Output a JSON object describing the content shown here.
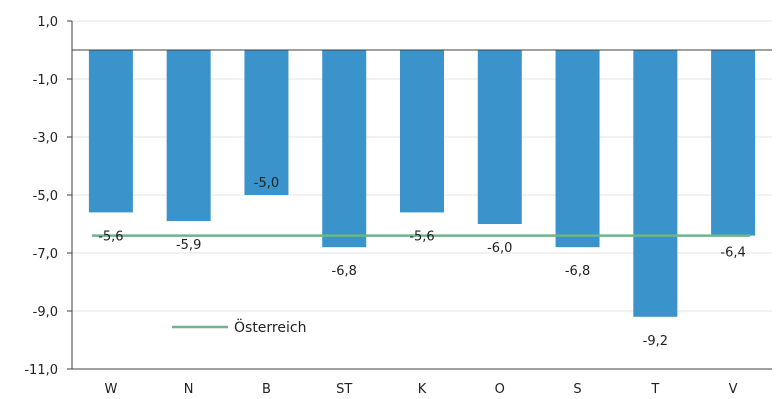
{
  "chart_data": {
    "type": "bar",
    "categories": [
      "W",
      "N",
      "B",
      "ST",
      "K",
      "O",
      "S",
      "T",
      "V"
    ],
    "series": [
      {
        "values": [
          -5.6,
          -5.9,
          -5.0,
          -6.8,
          -5.6,
          -6.0,
          -6.8,
          -9.2,
          -6.4
        ]
      },
      {
        "name": "Österreich",
        "type": "line",
        "values": [
          -6.4,
          -6.4,
          -6.4,
          -6.4,
          -6.4,
          -6.4,
          -6.4,
          -6.4,
          -6.4
        ]
      }
    ],
    "data_labels": [
      "-5,6",
      "-5,9",
      "-5,0",
      "-6,8",
      "-5,6",
      "-6,0",
      "-6,8",
      "-9,2",
      "-6,4"
    ],
    "y_ticks": [
      1.0,
      -1.0,
      -3.0,
      -5.0,
      -7.0,
      -9.0,
      -11.0
    ],
    "y_tick_labels": [
      "1,0",
      "-1,0",
      "-3,0",
      "-5,0",
      "-7,0",
      "-9,0",
      "-11,0"
    ],
    "ylim": [
      -11.0,
      1.0
    ],
    "title": "",
    "xlabel": "",
    "ylabel": "",
    "grid": true,
    "legend": "lower-left-inside",
    "colors": {
      "bar": "#3a93cb",
      "line": "#6db58a",
      "grid": "#e6e6e6",
      "axis": "#404040"
    }
  }
}
